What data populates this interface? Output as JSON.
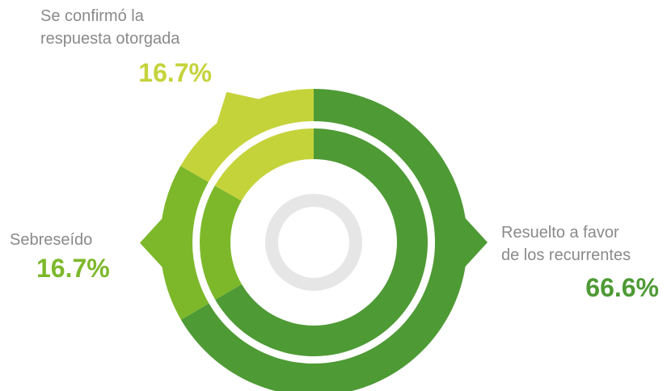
{
  "chart_data": {
    "type": "pie",
    "categories": [
      "Resuelto a favor\nde los recurrentes",
      "Sebreseído",
      "Se confirmó la\nrespuesta otorgada"
    ],
    "values": [
      66.6,
      16.7,
      16.7
    ],
    "value_labels": [
      "66.6%",
      "16.7%",
      "16.7%"
    ],
    "colors": [
      "#4e9a35",
      "#7db82b",
      "#c5d33b"
    ]
  }
}
